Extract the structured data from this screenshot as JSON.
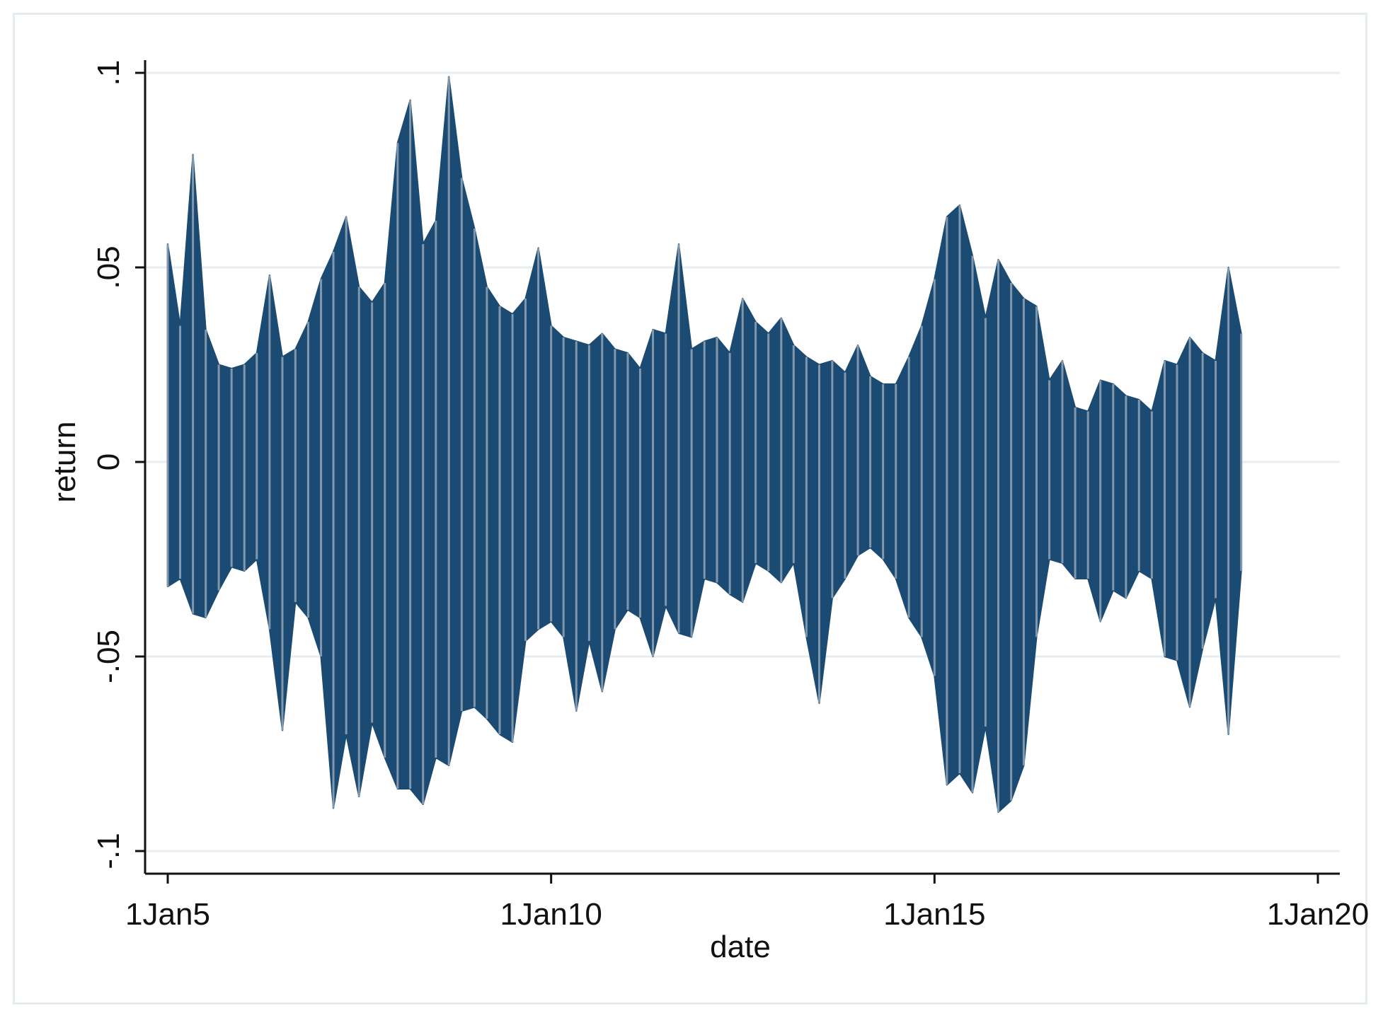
{
  "chart_data": {
    "type": "line",
    "title": "",
    "xlabel": "date",
    "ylabel": "return",
    "x_ticks": [
      {
        "value": "2005-01-01",
        "label": "1Jan5"
      },
      {
        "value": "2010-01-01",
        "label": "1Jan10"
      },
      {
        "value": "2015-01-01",
        "label": "1Jan15"
      },
      {
        "value": "2020-01-01",
        "label": "1Jan20"
      }
    ],
    "y_ticks": [
      {
        "value": 0.1,
        "label": ".1"
      },
      {
        "value": 0.05,
        "label": ".05"
      },
      {
        "value": 0,
        "label": "0"
      },
      {
        "value": -0.05,
        "label": "-.05"
      },
      {
        "value": -0.1,
        "label": "-.1"
      }
    ],
    "xlim": [
      "2005-01-01",
      "2020-01-01"
    ],
    "ylim": [
      -0.1,
      0.1
    ],
    "grid": true,
    "series": [
      {
        "color": "#1b4a72",
        "x": [
          "2005-01-01",
          "2005-03-01",
          "2005-05-01",
          "2005-07-01",
          "2005-09-01",
          "2005-11-01",
          "2006-01-01",
          "2006-03-01",
          "2006-05-01",
          "2006-07-01",
          "2006-09-01",
          "2006-11-01",
          "2007-01-01",
          "2007-03-01",
          "2007-05-01",
          "2007-07-01",
          "2007-09-01",
          "2007-11-01",
          "2008-01-01",
          "2008-03-01",
          "2008-05-01",
          "2008-07-01",
          "2008-09-01",
          "2008-11-01",
          "2009-01-01",
          "2009-03-01",
          "2009-05-01",
          "2009-07-01",
          "2009-09-01",
          "2009-11-01",
          "2010-01-01",
          "2010-03-01",
          "2010-05-01",
          "2010-07-01",
          "2010-09-01",
          "2010-11-01",
          "2011-01-01",
          "2011-03-01",
          "2011-05-01",
          "2011-07-01",
          "2011-09-01",
          "2011-11-01",
          "2012-01-01",
          "2012-03-01",
          "2012-05-01",
          "2012-07-01",
          "2012-09-01",
          "2012-11-01",
          "2013-01-01",
          "2013-03-01",
          "2013-05-01",
          "2013-07-01",
          "2013-09-01",
          "2013-11-01",
          "2014-01-01",
          "2014-03-01",
          "2014-05-01",
          "2014-07-01",
          "2014-09-01",
          "2014-11-01",
          "2015-01-01",
          "2015-03-01",
          "2015-05-01",
          "2015-07-01",
          "2015-09-01",
          "2015-11-01",
          "2016-01-01",
          "2016-03-01",
          "2016-05-01",
          "2016-07-01",
          "2016-09-01",
          "2016-11-01",
          "2017-01-01",
          "2017-03-01",
          "2017-05-01",
          "2017-07-01",
          "2017-09-01",
          "2017-11-01",
          "2018-01-01",
          "2018-03-01",
          "2018-05-01",
          "2018-07-01",
          "2018-09-01",
          "2018-11-01",
          "2019-01-01"
        ],
        "y_high": [
          0.056,
          0.035,
          0.079,
          0.034,
          0.025,
          0.024,
          0.025,
          0.028,
          0.048,
          0.027,
          0.029,
          0.036,
          0.047,
          0.054,
          0.063,
          0.045,
          0.041,
          0.046,
          0.082,
          0.093,
          0.056,
          0.062,
          0.099,
          0.073,
          0.06,
          0.045,
          0.04,
          0.038,
          0.042,
          0.055,
          0.035,
          0.032,
          0.031,
          0.03,
          0.033,
          0.029,
          0.028,
          0.024,
          0.034,
          0.033,
          0.056,
          0.029,
          0.031,
          0.032,
          0.028,
          0.042,
          0.036,
          0.033,
          0.037,
          0.03,
          0.027,
          0.025,
          0.026,
          0.023,
          0.03,
          0.022,
          0.02,
          0.02,
          0.027,
          0.035,
          0.047,
          0.063,
          0.066,
          0.053,
          0.037,
          0.052,
          0.046,
          0.042,
          0.04,
          0.021,
          0.026,
          0.014,
          0.013,
          0.021,
          0.02,
          0.017,
          0.016,
          0.013,
          0.026,
          0.025,
          0.032,
          0.028,
          0.026,
          0.05,
          0.033
        ],
        "y_low": [
          -0.032,
          -0.03,
          -0.039,
          -0.04,
          -0.033,
          -0.027,
          -0.028,
          -0.025,
          -0.043,
          -0.069,
          -0.036,
          -0.04,
          -0.05,
          -0.089,
          -0.07,
          -0.086,
          -0.067,
          -0.076,
          -0.084,
          -0.084,
          -0.088,
          -0.076,
          -0.078,
          -0.064,
          -0.063,
          -0.066,
          -0.07,
          -0.072,
          -0.046,
          -0.043,
          -0.041,
          -0.045,
          -0.064,
          -0.046,
          -0.059,
          -0.043,
          -0.038,
          -0.04,
          -0.05,
          -0.037,
          -0.044,
          -0.045,
          -0.03,
          -0.031,
          -0.034,
          -0.036,
          -0.026,
          -0.028,
          -0.031,
          -0.026,
          -0.045,
          -0.062,
          -0.035,
          -0.03,
          -0.024,
          -0.022,
          -0.025,
          -0.03,
          -0.04,
          -0.045,
          -0.055,
          -0.083,
          -0.08,
          -0.085,
          -0.068,
          -0.09,
          -0.087,
          -0.078,
          -0.045,
          -0.025,
          -0.026,
          -0.03,
          -0.03,
          -0.041,
          -0.033,
          -0.035,
          -0.028,
          -0.03,
          -0.05,
          -0.051,
          -0.063,
          -0.048,
          -0.035,
          -0.07,
          -0.028
        ]
      }
    ]
  }
}
